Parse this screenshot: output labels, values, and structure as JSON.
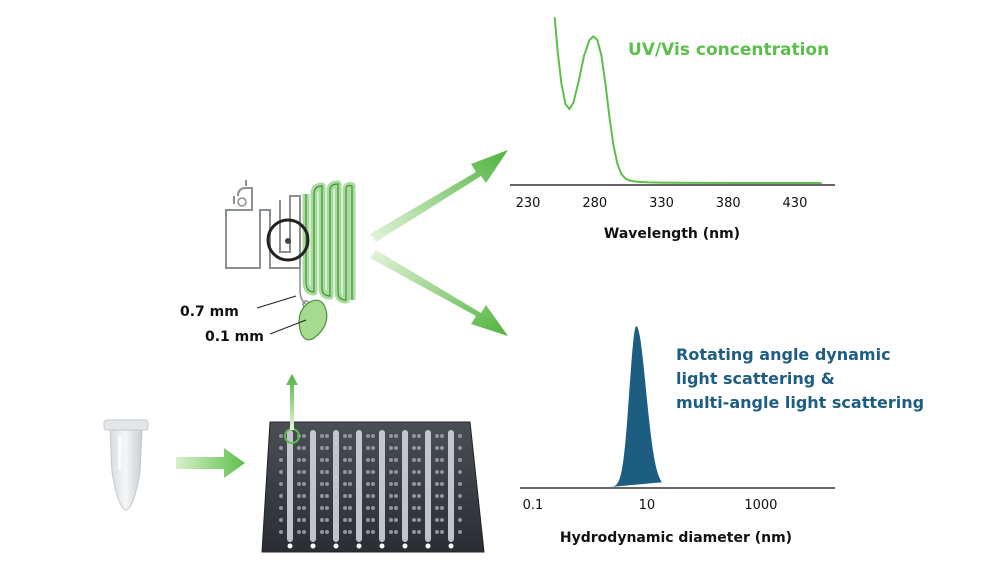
{
  "colors": {
    "green": "#5cbf4a",
    "green_light": "#a6da8f",
    "blue": "#1d5d82",
    "axis": "#333333",
    "text": "#111111"
  },
  "chip": {
    "label_wide": "0.7 mm",
    "label_narrow": "0.1 mm"
  },
  "chart_data": [
    {
      "type": "line",
      "title": "UV/Vis concentration",
      "xlabel": "Wavelength (nm)",
      "ylabel": "",
      "xlim": [
        230,
        460
      ],
      "ticks": [
        "230",
        "280",
        "330",
        "380",
        "430"
      ],
      "tick_values": [
        230,
        280,
        330,
        380,
        430
      ],
      "color": "#5cbf4a",
      "series": [
        {
          "x": [
            250,
            252,
            255,
            258,
            261,
            264,
            268,
            272,
            276,
            279,
            282,
            285,
            288,
            291,
            294,
            297,
            300,
            303,
            306,
            310,
            315,
            320,
            330,
            340,
            360,
            390,
            430,
            450
          ],
          "y": [
            1.3,
            1.05,
            0.78,
            0.62,
            0.58,
            0.63,
            0.8,
            1.0,
            1.12,
            1.15,
            1.12,
            1.0,
            0.78,
            0.52,
            0.3,
            0.15,
            0.07,
            0.035,
            0.02,
            0.012,
            0.008,
            0.005,
            0.003,
            0.002,
            0.001,
            0.0,
            0.0,
            0.0
          ]
        }
      ]
    },
    {
      "type": "area",
      "title": "Rotating angle dynamic light scattering & multi-angle light scattering",
      "title_lines": [
        "Rotating angle dynamic",
        "light scattering &",
        "multi-angle light scattering"
      ],
      "xlabel": "Hydrodynamic diameter (nm)",
      "ylabel": "",
      "xscale": "log",
      "xlim": [
        0.1,
        20000
      ],
      "ticks": [
        "0.1",
        "10",
        "1000"
      ],
      "tick_values": [
        0.1,
        10,
        1000
      ],
      "color": "#1d5d82",
      "series": [
        {
          "peak_center": 6.5,
          "peak_height": 1.0
        }
      ]
    }
  ]
}
